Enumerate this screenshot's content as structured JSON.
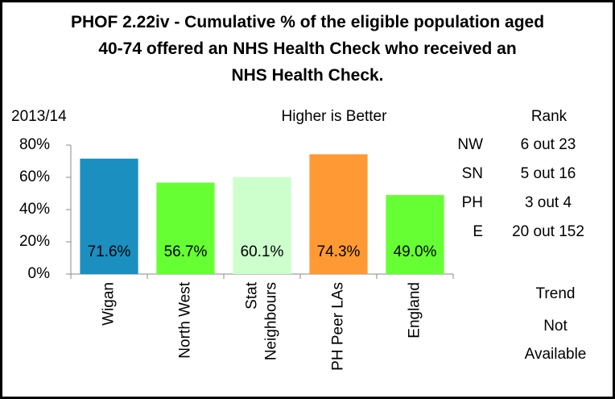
{
  "chart_data": {
    "type": "bar",
    "title": "PHOF 2.22iv - Cumulative % of the eligible population aged 40-74 offered an NHS Health Check who received an NHS Health Check.",
    "period": "2013/14",
    "note": "Higher is Better",
    "categories": [
      "Wigan",
      "North West",
      "Stat Neighbours",
      "PH Peer LAs",
      "England"
    ],
    "values": [
      71.6,
      56.7,
      60.1,
      74.3,
      49.0
    ],
    "value_labels": [
      "71.6%",
      "56.7%",
      "60.1%",
      "74.3%",
      "49.0%"
    ],
    "colors": [
      "#1a8fc0",
      "#66ff33",
      "#ccffcc",
      "#ff9933",
      "#66ff33"
    ],
    "ylim": [
      0,
      80
    ],
    "yticks": [
      {
        "value": 0,
        "label": "0%"
      },
      {
        "value": 20,
        "label": "20%"
      },
      {
        "value": 40,
        "label": "40%"
      },
      {
        "value": 60,
        "label": "60%"
      },
      {
        "value": 80,
        "label": "80%"
      }
    ]
  },
  "rank": {
    "title": "Rank",
    "rows": [
      {
        "label": "NW",
        "value": "6 out 23"
      },
      {
        "label": "SN",
        "value": "5 out 16"
      },
      {
        "label": "PH",
        "value": "3 out 4"
      },
      {
        "label": "E",
        "value": "20 out 152"
      }
    ]
  },
  "trend": {
    "title": "Trend",
    "value": "Not Available"
  }
}
